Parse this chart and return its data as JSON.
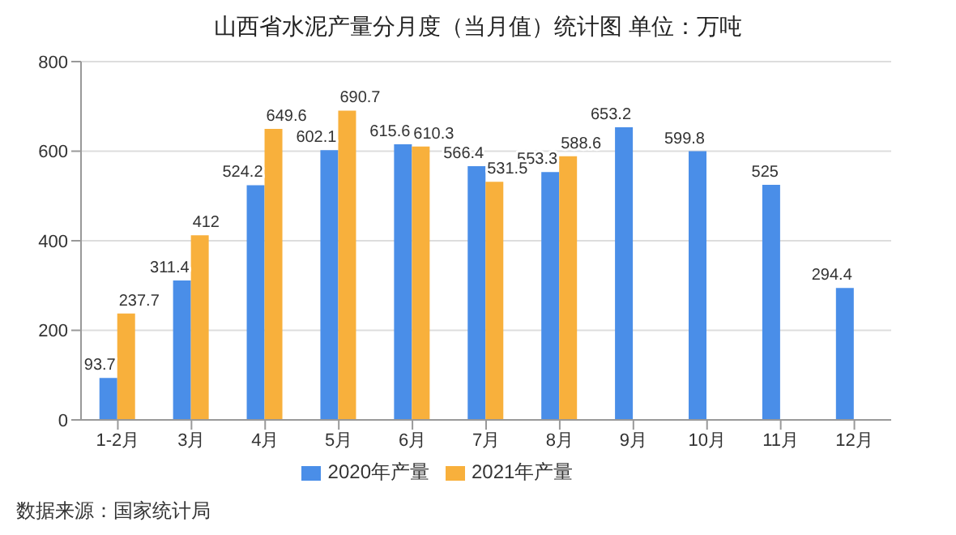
{
  "chart_data": {
    "type": "bar",
    "title": "山西省水泥产量分月度（当月值）统计图 单位：万吨",
    "categories": [
      "1-2月",
      "3月",
      "4月",
      "5月",
      "6月",
      "7月",
      "8月",
      "9月",
      "10月",
      "11月",
      "12月"
    ],
    "series": [
      {
        "name": "2020年产量",
        "color": "#4a8ee8",
        "values": [
          93.7,
          311.4,
          524.2,
          602.1,
          615.6,
          566.4,
          553.3,
          653.2,
          599.8,
          525,
          294.4
        ]
      },
      {
        "name": "2021年产量",
        "color": "#f8b03c",
        "values": [
          237.7,
          412,
          649.6,
          690.7,
          610.3,
          531.5,
          588.6,
          null,
          null,
          null,
          null
        ]
      }
    ],
    "ylim": [
      0,
      800
    ],
    "yticks": [
      0,
      200,
      400,
      600,
      800
    ],
    "grid": "y",
    "legend": "bottom",
    "data_labels": true,
    "annotations": [
      "数据来源：国家统计局"
    ]
  }
}
